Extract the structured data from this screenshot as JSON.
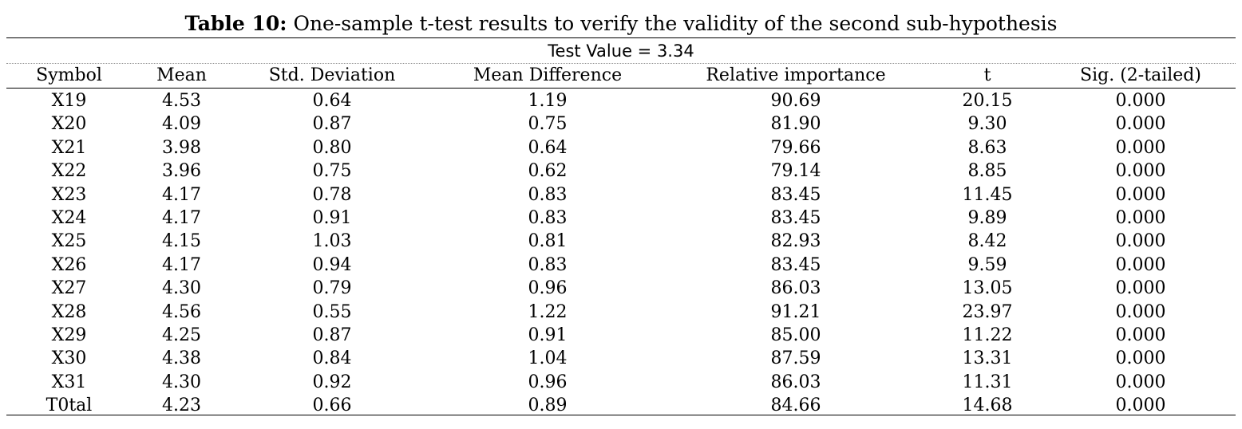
{
  "caption": {
    "label": "Table 10:",
    "text": " One-sample t-test results to verify the validity of the second sub-hypothesis"
  },
  "test_value": "Test Value = 3.34",
  "columns": [
    "Symbol",
    "Mean",
    "Std. Deviation",
    "Mean Difference",
    "Relative importance",
    "t",
    "Sig. (2-tailed)"
  ],
  "rows": [
    [
      "X19",
      "4.53",
      "0.64",
      "1.19",
      "90.69",
      "20.15",
      "0.000"
    ],
    [
      "X20",
      "4.09",
      "0.87",
      "0.75",
      "81.90",
      "9.30",
      "0.000"
    ],
    [
      "X21",
      "3.98",
      "0.80",
      "0.64",
      "79.66",
      "8.63",
      "0.000"
    ],
    [
      "X22",
      "3.96",
      "0.75",
      "0.62",
      "79.14",
      "8.85",
      "0.000"
    ],
    [
      "X23",
      "4.17",
      "0.78",
      "0.83",
      "83.45",
      "11.45",
      "0.000"
    ],
    [
      "X24",
      "4.17",
      "0.91",
      "0.83",
      "83.45",
      "9.89",
      "0.000"
    ],
    [
      "X25",
      "4.15",
      "1.03",
      "0.81",
      "82.93",
      "8.42",
      "0.000"
    ],
    [
      "X26",
      "4.17",
      "0.94",
      "0.83",
      "83.45",
      "9.59",
      "0.000"
    ],
    [
      "X27",
      "4.30",
      "0.79",
      "0.96",
      "86.03",
      "13.05",
      "0.000"
    ],
    [
      "X28",
      "4.56",
      "0.55",
      "1.22",
      "91.21",
      "23.97",
      "0.000"
    ],
    [
      "X29",
      "4.25",
      "0.87",
      "0.91",
      "85.00",
      "11.22",
      "0.000"
    ],
    [
      "X30",
      "4.38",
      "0.84",
      "1.04",
      "87.59",
      "13.31",
      "0.000"
    ],
    [
      "X31",
      "4.30",
      "0.92",
      "0.96",
      "86.03",
      "11.31",
      "0.000"
    ],
    [
      "T0tal",
      "4.23",
      "0.66",
      "0.89",
      "84.66",
      "14.68",
      "0.000"
    ]
  ]
}
